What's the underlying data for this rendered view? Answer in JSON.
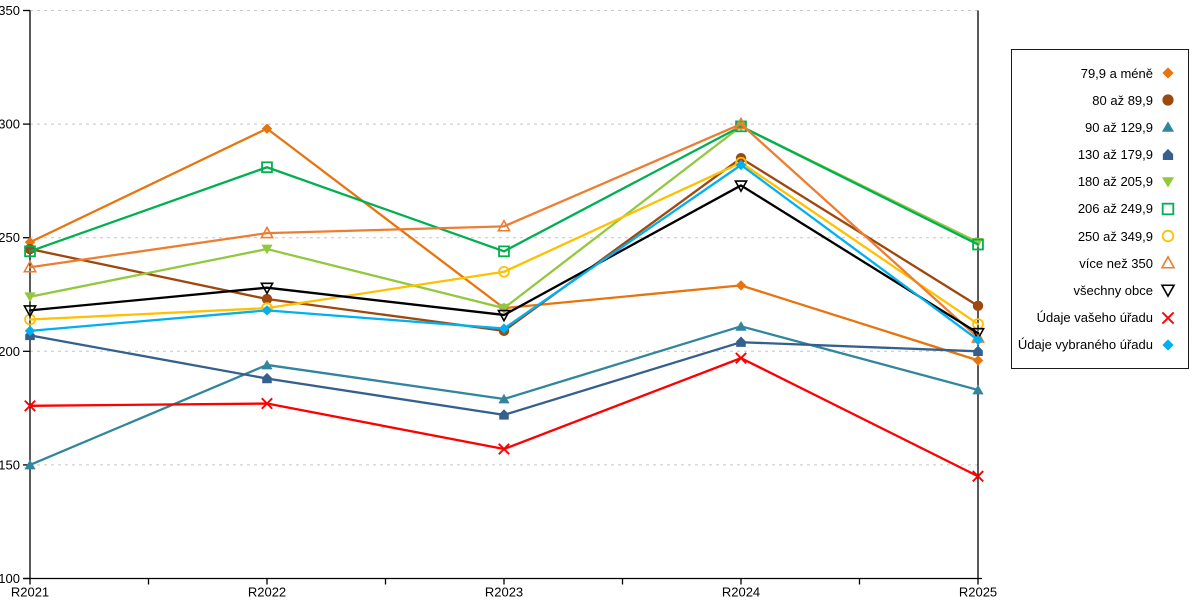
{
  "chart_data": {
    "type": "line",
    "title": "",
    "xlabel": "",
    "ylabel": "",
    "categories": [
      "R2021",
      "R2022",
      "R2023",
      "R2024",
      "R2025"
    ],
    "series": [
      {
        "name": "79,9 a méně",
        "marker": "diamond-filled",
        "color": "#E8740E",
        "values": [
          248,
          298,
          219,
          229,
          196
        ]
      },
      {
        "name": "80 až 89,9",
        "marker": "circle-filled",
        "color": "#9E480E",
        "values": [
          245,
          223,
          209,
          285,
          220
        ]
      },
      {
        "name": "90 až 129,9",
        "marker": "triangle-up-filled",
        "color": "#31859C",
        "values": [
          150,
          194,
          179,
          211,
          183
        ]
      },
      {
        "name": "130 až 179,9",
        "marker": "pentagon-filled",
        "color": "#35608D",
        "values": [
          207,
          188,
          172,
          204,
          200
        ]
      },
      {
        "name": "180 až 205,9",
        "marker": "triangle-down-filled",
        "color": "#92C83E",
        "values": [
          224,
          245,
          219,
          299,
          248
        ]
      },
      {
        "name": "206 až 249,9",
        "marker": "square-open",
        "color": "#00B050",
        "values": [
          244,
          281,
          244,
          299,
          247
        ]
      },
      {
        "name": "250 až 349,9",
        "marker": "circle-open",
        "color": "#FFC000",
        "values": [
          214,
          219,
          235,
          283,
          212
        ]
      },
      {
        "name": "více než 350",
        "marker": "triangle-up-open",
        "color": "#ED7D31",
        "values": [
          237,
          252,
          255,
          300,
          206
        ]
      },
      {
        "name": "všechny obce",
        "marker": "triangle-down-open",
        "color": "#000000",
        "values": [
          218,
          228,
          216,
          273,
          208
        ]
      },
      {
        "name": "Údaje vašeho úřadu",
        "marker": "x",
        "color": "#FF0000",
        "values": [
          176,
          177,
          157,
          197,
          145
        ]
      },
      {
        "name": "Údaje vybraného úřadu",
        "marker": "diamond-filled",
        "color": "#00B0F0",
        "values": [
          209,
          218,
          210,
          282,
          205
        ]
      }
    ],
    "ylim": [
      100,
      350
    ],
    "ytick_interval": 50,
    "y_tick_labels": [
      "100",
      "150",
      "200",
      "250",
      "300",
      "350"
    ],
    "grid": "horizontal-dashed",
    "gridline_color": "#C6C6C6",
    "axis_color": "#000000",
    "legend_position": "right",
    "legend_border_color": "#1a1a1a"
  }
}
